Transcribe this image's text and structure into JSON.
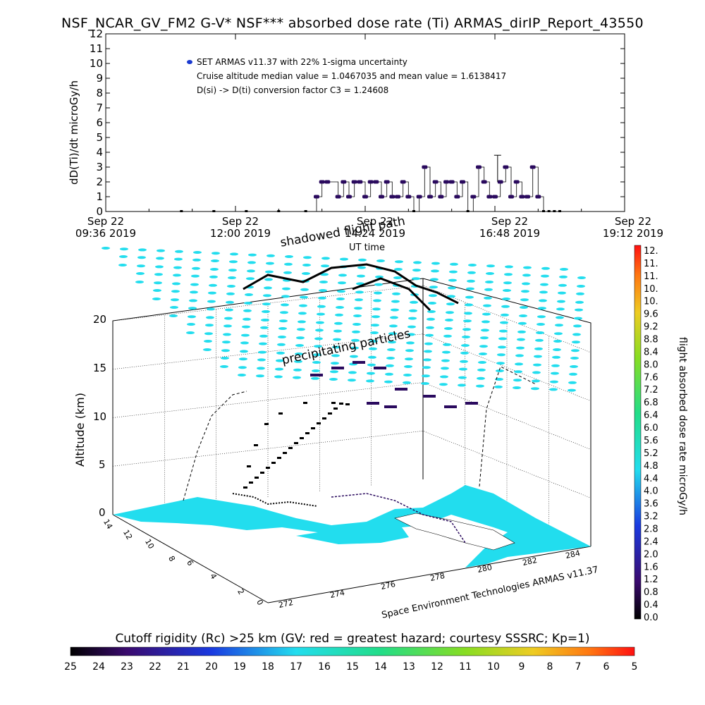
{
  "title": "NSF_NCAR_GV_FM2 G-V* NSF*** absorbed dose rate (Ti) ARMAS_dirIP_Report_43550",
  "timeseries": {
    "ylabel": "dD(Ti)/dt microGy/h",
    "xlabel": "UT time",
    "legend": [
      "SET ARMAS v11.37 with 22% 1-sigma uncertainty",
      "Cruise altitude median value = 1.0467035 and mean value = 1.6138417",
      "D(si) -> D(ti) conversion factor C3 = 1.24608"
    ],
    "x_ticks": [
      {
        "line1": "Sep 22",
        "line2": "09:36 2019"
      },
      {
        "line1": "Sep 22",
        "line2": "12:00 2019"
      },
      {
        "line1": "Sep 22",
        "line2": "14:24 2019"
      },
      {
        "line1": "Sep 22",
        "line2": "16:48 2019"
      },
      {
        "line1": "Sep 22",
        "line2": "19:12 2019"
      }
    ],
    "y_ticks": [
      "0",
      "1",
      "2",
      "3",
      "4",
      "5",
      "6",
      "7",
      "8",
      "9",
      "10",
      "11",
      "12"
    ]
  },
  "plot3d": {
    "annotations": [
      "shadowed flight path",
      "precipitating particles"
    ],
    "altitude_label": "Altitude (km)",
    "altitude_ticks": [
      "0",
      "5",
      "10",
      "15",
      "20"
    ],
    "lat_ticks": [
      "0",
      "2",
      "4",
      "6",
      "8",
      "10",
      "12",
      "14"
    ],
    "lon_ticks": [
      "272",
      "274",
      "276",
      "278",
      "280",
      "282",
      "284"
    ],
    "credit": "Space Environment Technologies ARMAS v11.37"
  },
  "colorbar_right": {
    "label": "flight absorbed dose rate microGy/h",
    "ticks": [
      "12.",
      "11.",
      "11.",
      "10.",
      "10.",
      "9.6",
      "9.2",
      "8.8",
      "8.4",
      "8.0",
      "7.6",
      "7.2",
      "6.8",
      "6.4",
      "6.0",
      "5.6",
      "5.2",
      "4.8",
      "4.4",
      "4.0",
      "3.6",
      "3.2",
      "2.8",
      "2.4",
      "2.0",
      "1.6",
      "1.2",
      "0.8",
      "0.4",
      "0.0"
    ]
  },
  "colorbar_bottom": {
    "title": "Cutoff rigidity (Rc) >25 km (GV: red = greatest hazard; courtesy SSSRC; Kp=1)",
    "ticks": [
      "25",
      "24",
      "23",
      "22",
      "21",
      "20",
      "19",
      "18",
      "17",
      "16",
      "15",
      "14",
      "13",
      "12",
      "11",
      "10",
      "9",
      "8",
      "7",
      "6",
      "5"
    ]
  },
  "colors": {
    "cyan": "#22ddee",
    "dose_point": "#2a0a5e",
    "legend_marker": "#1a3ad0"
  },
  "chart_data": {
    "type": "line",
    "title": "NSF_NCAR_GV_FM2 G-V* NSF*** absorbed dose rate (Ti) ARMAS_dirIP_Report_43550",
    "xlabel": "UT time",
    "ylabel": "dD(Ti)/dt microGy/h",
    "x_unit": "hours UT on Sep 22 2019",
    "xlim": [
      9.6,
      19.2
    ],
    "ylim": [
      0,
      12
    ],
    "series": [
      {
        "name": "SET ARMAS v11.37 with 22% 1-sigma uncertainty",
        "x": [
          11.0,
          11.6,
          12.2,
          12.8,
          13.3,
          13.5,
          13.6,
          13.7,
          13.9,
          14.0,
          14.1,
          14.2,
          14.3,
          14.4,
          14.5,
          14.6,
          14.7,
          14.8,
          14.9,
          15.0,
          15.1,
          15.2,
          15.3,
          15.4,
          15.5,
          15.6,
          15.7,
          15.8,
          15.9,
          16.0,
          16.1,
          16.2,
          16.3,
          16.4,
          16.5,
          16.6,
          16.7,
          16.8,
          16.9,
          17.0,
          17.1,
          17.2,
          17.3,
          17.4,
          17.5,
          17.6,
          17.7,
          17.8,
          17.9,
          18.0
        ],
        "values": [
          0,
          0,
          0,
          0,
          0,
          1,
          2,
          2,
          1,
          2,
          1,
          2,
          2,
          1,
          2,
          2,
          1,
          2,
          1,
          1,
          2,
          1,
          0,
          1,
          3,
          1,
          2,
          1,
          2,
          2,
          1,
          2,
          0,
          1,
          3,
          2,
          1,
          1,
          2,
          3,
          1,
          2,
          1,
          1,
          3,
          1,
          0,
          0,
          0,
          0
        ]
      }
    ]
  }
}
